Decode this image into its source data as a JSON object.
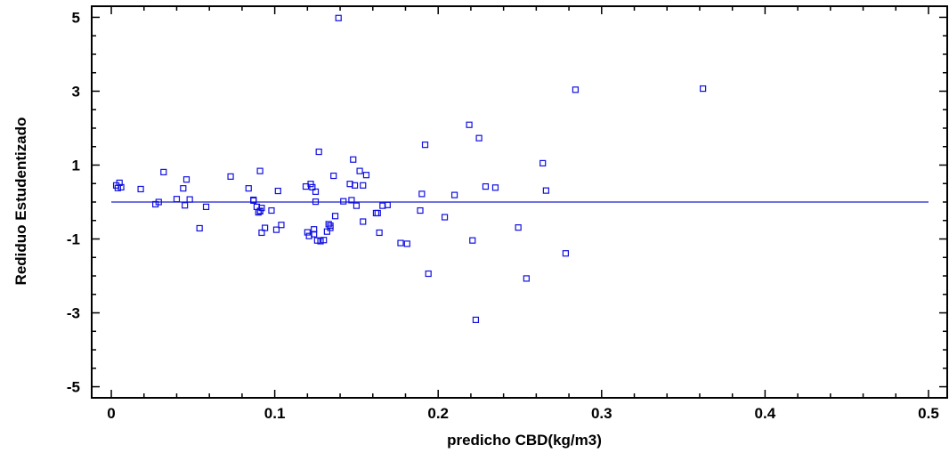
{
  "chart_data": {
    "type": "scatter",
    "title": "",
    "xlabel": "predicho CBD(kg/m3)",
    "ylabel": "Rediduo Estudentizado",
    "xlim": [
      -0.012,
      0.512
    ],
    "ylim": [
      -5.3,
      5.3
    ],
    "x_ticks": [
      0,
      0.1,
      0.2,
      0.3,
      0.4,
      0.5
    ],
    "x_tick_labels": [
      "0",
      "0.1",
      "0.2",
      "0.3",
      "0.4",
      "0.5"
    ],
    "y_ticks": [
      -5,
      -3,
      -1,
      1,
      3,
      5
    ],
    "y_tick_labels": [
      "-5",
      "-3",
      "-1",
      "1",
      "3",
      "5"
    ],
    "grid": false,
    "legend": "none",
    "colors": {
      "marker": "#1010e0",
      "line": "#1a1ad0",
      "frame": "#000000"
    },
    "marker": "open-square",
    "reference_line": {
      "y": 0,
      "x_range": [
        0,
        0.5
      ]
    },
    "points": [
      [
        0.003,
        0.45
      ],
      [
        0.004,
        0.38
      ],
      [
        0.005,
        0.52
      ],
      [
        0.006,
        0.4
      ],
      [
        0.018,
        0.35
      ],
      [
        0.027,
        -0.06
      ],
      [
        0.029,
        0.0
      ],
      [
        0.032,
        0.81
      ],
      [
        0.04,
        0.08
      ],
      [
        0.044,
        0.37
      ],
      [
        0.045,
        -0.09
      ],
      [
        0.046,
        0.61
      ],
      [
        0.048,
        0.07
      ],
      [
        0.054,
        -0.71
      ],
      [
        0.058,
        -0.13
      ],
      [
        0.073,
        0.69
      ],
      [
        0.084,
        0.37
      ],
      [
        0.087,
        0.06
      ],
      [
        0.087,
        0.04
      ],
      [
        0.089,
        -0.13
      ],
      [
        0.09,
        -0.28
      ],
      [
        0.091,
        -0.25
      ],
      [
        0.091,
        -0.24
      ],
      [
        0.091,
        0.84
      ],
      [
        0.092,
        -0.83
      ],
      [
        0.092,
        -0.16
      ],
      [
        0.094,
        -0.7
      ],
      [
        0.098,
        -0.23
      ],
      [
        0.101,
        -0.75
      ],
      [
        0.102,
        0.3
      ],
      [
        0.104,
        -0.62
      ],
      [
        0.119,
        0.42
      ],
      [
        0.12,
        -0.82
      ],
      [
        0.121,
        -0.92
      ],
      [
        0.122,
        0.49
      ],
      [
        0.123,
        0.4
      ],
      [
        0.124,
        -0.87
      ],
      [
        0.124,
        -0.74
      ],
      [
        0.125,
        0.01
      ],
      [
        0.125,
        0.28
      ],
      [
        0.126,
        -1.04
      ],
      [
        0.127,
        1.36
      ],
      [
        0.128,
        -1.06
      ],
      [
        0.13,
        -1.03
      ],
      [
        0.132,
        -0.8
      ],
      [
        0.133,
        -0.6
      ],
      [
        0.134,
        -0.64
      ],
      [
        0.134,
        -0.7
      ],
      [
        0.136,
        0.71
      ],
      [
        0.137,
        -0.38
      ],
      [
        0.139,
        4.98
      ],
      [
        0.142,
        0.02
      ],
      [
        0.146,
        0.49
      ],
      [
        0.147,
        0.05
      ],
      [
        0.148,
        1.15
      ],
      [
        0.149,
        0.45
      ],
      [
        0.15,
        -0.1
      ],
      [
        0.152,
        0.84
      ],
      [
        0.154,
        -0.53
      ],
      [
        0.154,
        0.45
      ],
      [
        0.156,
        0.73
      ],
      [
        0.162,
        -0.3
      ],
      [
        0.163,
        -0.3
      ],
      [
        0.164,
        -0.83
      ],
      [
        0.166,
        -0.1
      ],
      [
        0.169,
        -0.08
      ],
      [
        0.177,
        -1.11
      ],
      [
        0.181,
        -1.13
      ],
      [
        0.189,
        -0.23
      ],
      [
        0.19,
        0.22
      ],
      [
        0.192,
        1.55
      ],
      [
        0.194,
        -1.94
      ],
      [
        0.204,
        -0.41
      ],
      [
        0.21,
        0.19
      ],
      [
        0.219,
        2.09
      ],
      [
        0.221,
        -1.04
      ],
      [
        0.223,
        -3.19
      ],
      [
        0.225,
        1.73
      ],
      [
        0.229,
        0.42
      ],
      [
        0.235,
        0.39
      ],
      [
        0.249,
        -0.69
      ],
      [
        0.254,
        -2.07
      ],
      [
        0.264,
        1.05
      ],
      [
        0.266,
        0.31
      ],
      [
        0.278,
        -1.39
      ],
      [
        0.284,
        3.04
      ],
      [
        0.362,
        3.07
      ]
    ]
  }
}
